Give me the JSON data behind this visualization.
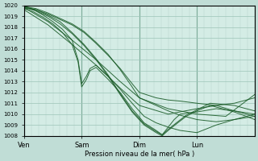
{
  "xlabel": "Pression niveau de la mer( hPa )",
  "ylim": [
    1008,
    1020
  ],
  "yticks": [
    1008,
    1009,
    1010,
    1011,
    1012,
    1013,
    1014,
    1015,
    1016,
    1017,
    1018,
    1019,
    1020
  ],
  "xtick_labels": [
    "Ven",
    "Sam",
    "Dim",
    "Lun"
  ],
  "xtick_positions": [
    0,
    48,
    96,
    144
  ],
  "total_hours": 192,
  "bg_color": "#d4ece5",
  "grid_color": "#9dc4b8",
  "line_color": "#1a5c28",
  "line_width": 0.7,
  "fig_bg": "#c0ddd6",
  "lines": [
    {
      "x": [
        0,
        10,
        20,
        30,
        40,
        50,
        60,
        70,
        80,
        90,
        96,
        110,
        120,
        130,
        144,
        160,
        175,
        192
      ],
      "y": [
        1019.8,
        1019.6,
        1019.2,
        1018.7,
        1018.2,
        1017.5,
        1016.5,
        1015.4,
        1014.2,
        1012.8,
        1012.0,
        1011.5,
        1011.3,
        1011.2,
        1011.0,
        1010.8,
        1011.0,
        1011.5
      ]
    },
    {
      "x": [
        0,
        10,
        20,
        30,
        40,
        50,
        60,
        70,
        80,
        90,
        96,
        110,
        120,
        130,
        144,
        160,
        175,
        192
      ],
      "y": [
        1019.9,
        1019.7,
        1019.3,
        1018.8,
        1018.3,
        1017.6,
        1016.6,
        1015.5,
        1014.1,
        1012.5,
        1011.5,
        1010.8,
        1010.3,
        1009.9,
        1009.5,
        1009.3,
        1009.5,
        1010.0
      ]
    },
    {
      "x": [
        0,
        8,
        16,
        24,
        32,
        40,
        45,
        48,
        52,
        55,
        60,
        70,
        80,
        90,
        100,
        110,
        120,
        130,
        144,
        160,
        175,
        192
      ],
      "y": [
        1019.9,
        1019.6,
        1019.1,
        1018.5,
        1017.8,
        1016.8,
        1015.0,
        1012.8,
        1013.5,
        1014.2,
        1014.5,
        1013.5,
        1012.3,
        1011.0,
        1009.8,
        1009.2,
        1008.8,
        1008.5,
        1008.3,
        1009.0,
        1009.5,
        1009.8
      ]
    },
    {
      "x": [
        0,
        8,
        16,
        24,
        32,
        40,
        45,
        48,
        52,
        55,
        60,
        70,
        80,
        90,
        100,
        110,
        115,
        120,
        125,
        130,
        144,
        160,
        175,
        192
      ],
      "y": [
        1019.7,
        1019.4,
        1018.9,
        1018.3,
        1017.5,
        1016.4,
        1014.8,
        1012.5,
        1013.2,
        1014.0,
        1014.3,
        1013.2,
        1012.0,
        1010.5,
        1009.2,
        1008.5,
        1008.1,
        1008.8,
        1009.5,
        1010.0,
        1010.2,
        1010.5,
        1010.3,
        1010.0
      ]
    },
    {
      "x": [
        0,
        10,
        20,
        30,
        40,
        50,
        60,
        70,
        80,
        90,
        100,
        110,
        115,
        120,
        128,
        135,
        144,
        155,
        165,
        175,
        185,
        192
      ],
      "y": [
        1019.8,
        1019.5,
        1019.0,
        1018.3,
        1017.4,
        1016.3,
        1015.0,
        1013.5,
        1011.8,
        1010.2,
        1009.0,
        1008.3,
        1008.0,
        1008.5,
        1009.2,
        1009.8,
        1010.3,
        1010.8,
        1010.5,
        1010.2,
        1009.8,
        1009.5
      ]
    },
    {
      "x": [
        0,
        10,
        20,
        30,
        40,
        50,
        60,
        70,
        80,
        90,
        100,
        110,
        115,
        120,
        128,
        135,
        144,
        155,
        165,
        175,
        185,
        192
      ],
      "y": [
        1019.9,
        1019.6,
        1019.1,
        1018.5,
        1017.5,
        1016.4,
        1015.1,
        1013.6,
        1011.9,
        1010.3,
        1009.1,
        1008.4,
        1008.1,
        1008.6,
        1009.3,
        1009.9,
        1010.4,
        1011.0,
        1010.9,
        1010.8,
        1010.5,
        1010.3
      ]
    },
    {
      "x": [
        0,
        20,
        40,
        60,
        80,
        96,
        120,
        144,
        168,
        192
      ],
      "y": [
        1019.8,
        1018.5,
        1016.8,
        1015.0,
        1013.0,
        1011.5,
        1010.5,
        1010.0,
        1009.8,
        1011.8
      ]
    },
    {
      "x": [
        0,
        20,
        40,
        60,
        80,
        96,
        120,
        144,
        160,
        175,
        192
      ],
      "y": [
        1019.6,
        1018.2,
        1016.4,
        1014.5,
        1012.4,
        1010.8,
        1010.0,
        1010.5,
        1010.8,
        1010.3,
        1009.8
      ]
    }
  ]
}
